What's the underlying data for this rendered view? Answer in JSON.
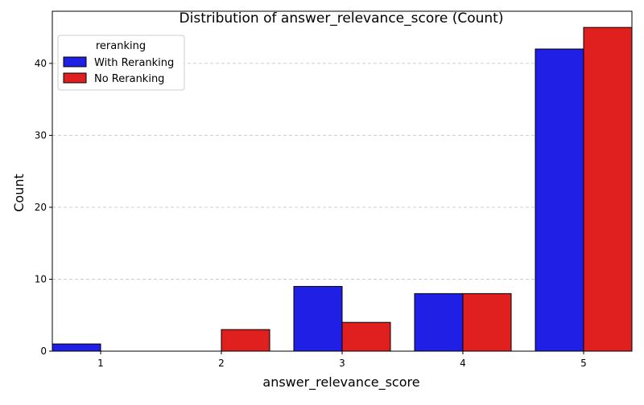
{
  "chart_data": {
    "type": "bar",
    "title": "Distribution of answer_relevance_score (Count)",
    "xlabel": "answer_relevance_score",
    "ylabel": "Count",
    "categories": [
      "1",
      "2",
      "3",
      "4",
      "5"
    ],
    "series": [
      {
        "name": "With Reranking",
        "color": "#1f1fe6",
        "values": [
          1,
          0,
          9,
          8,
          42
        ]
      },
      {
        "name": "No Reranking",
        "color": "#e01f1f",
        "values": [
          0,
          3,
          4,
          8,
          45
        ]
      }
    ],
    "ylim": [
      0,
      47.25
    ],
    "yticks": [
      0,
      10,
      20,
      30,
      40
    ],
    "grid": "y-dashed",
    "legend": {
      "title": "reranking",
      "placement": "top-left"
    }
  }
}
